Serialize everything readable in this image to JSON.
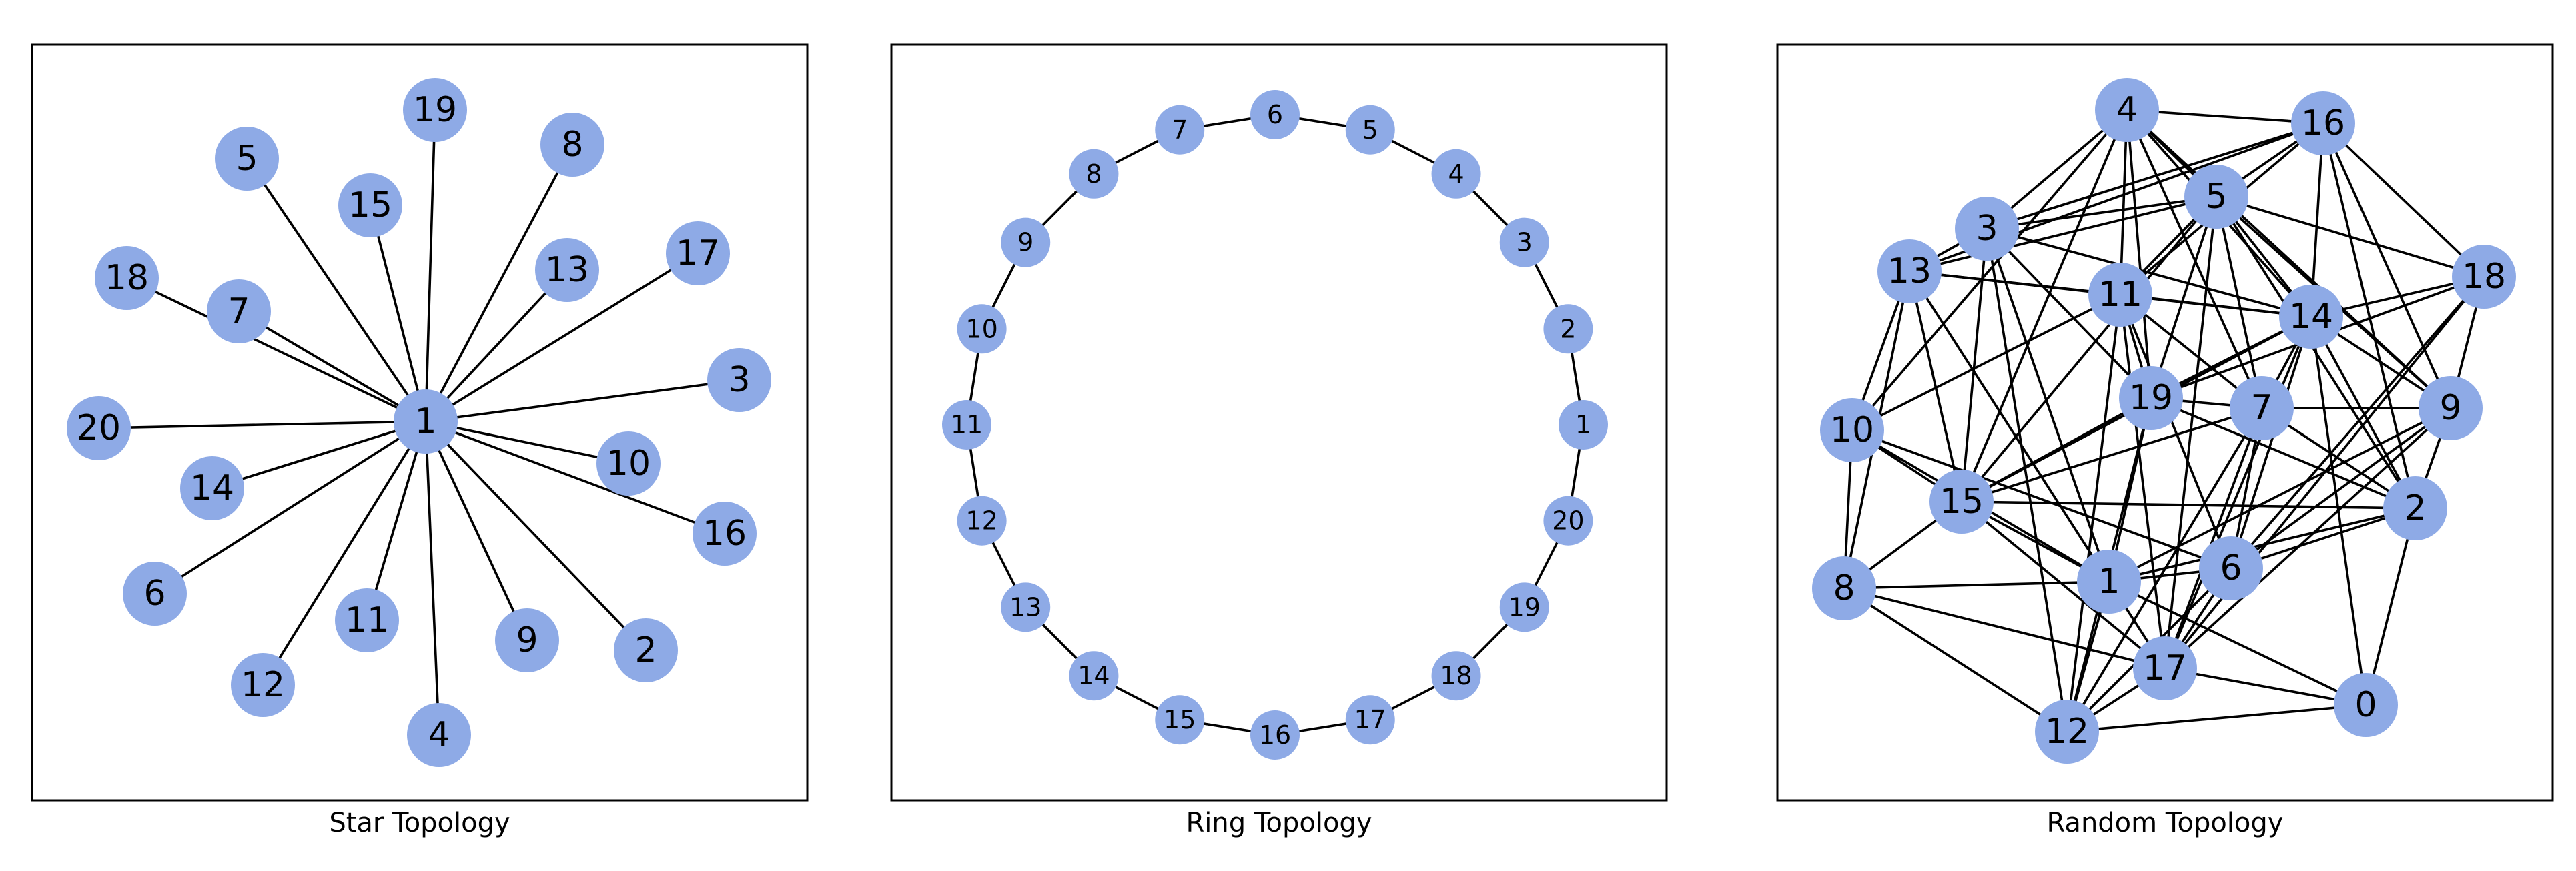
{
  "colors": {
    "node_fill": "#8eaae6",
    "edge": "#000000",
    "frame": "#000000",
    "background": "#ffffff"
  },
  "panels": [
    {
      "id": "star",
      "title": "Star Topology",
      "nodes": [
        {
          "id": "1"
        },
        {
          "id": "19"
        },
        {
          "id": "8"
        },
        {
          "id": "5"
        },
        {
          "id": "15"
        },
        {
          "id": "13"
        },
        {
          "id": "17"
        },
        {
          "id": "18"
        },
        {
          "id": "7"
        },
        {
          "id": "3"
        },
        {
          "id": "20"
        },
        {
          "id": "10"
        },
        {
          "id": "14"
        },
        {
          "id": "16"
        },
        {
          "id": "6"
        },
        {
          "id": "11"
        },
        {
          "id": "9"
        },
        {
          "id": "2"
        },
        {
          "id": "12"
        },
        {
          "id": "4"
        }
      ],
      "edges": [
        [
          "1",
          "19"
        ],
        [
          "1",
          "8"
        ],
        [
          "1",
          "5"
        ],
        [
          "1",
          "15"
        ],
        [
          "1",
          "13"
        ],
        [
          "1",
          "17"
        ],
        [
          "1",
          "18"
        ],
        [
          "1",
          "7"
        ],
        [
          "1",
          "3"
        ],
        [
          "1",
          "20"
        ],
        [
          "1",
          "10"
        ],
        [
          "1",
          "14"
        ],
        [
          "1",
          "16"
        ],
        [
          "1",
          "6"
        ],
        [
          "1",
          "11"
        ],
        [
          "1",
          "9"
        ],
        [
          "1",
          "2"
        ],
        [
          "1",
          "12"
        ],
        [
          "1",
          "4"
        ]
      ]
    },
    {
      "id": "ring",
      "title": "Ring Topology",
      "nodes": [
        {
          "id": "1"
        },
        {
          "id": "2"
        },
        {
          "id": "3"
        },
        {
          "id": "4"
        },
        {
          "id": "5"
        },
        {
          "id": "6"
        },
        {
          "id": "7"
        },
        {
          "id": "8"
        },
        {
          "id": "9"
        },
        {
          "id": "10"
        },
        {
          "id": "11"
        },
        {
          "id": "12"
        },
        {
          "id": "13"
        },
        {
          "id": "14"
        },
        {
          "id": "15"
        },
        {
          "id": "16"
        },
        {
          "id": "17"
        },
        {
          "id": "18"
        },
        {
          "id": "19"
        },
        {
          "id": "20"
        }
      ],
      "edges": [
        [
          "1",
          "2"
        ],
        [
          "2",
          "3"
        ],
        [
          "3",
          "4"
        ],
        [
          "4",
          "5"
        ],
        [
          "5",
          "6"
        ],
        [
          "6",
          "7"
        ],
        [
          "7",
          "8"
        ],
        [
          "8",
          "9"
        ],
        [
          "9",
          "10"
        ],
        [
          "10",
          "11"
        ],
        [
          "11",
          "12"
        ],
        [
          "12",
          "13"
        ],
        [
          "13",
          "14"
        ],
        [
          "14",
          "15"
        ],
        [
          "15",
          "16"
        ],
        [
          "16",
          "17"
        ],
        [
          "17",
          "18"
        ],
        [
          "18",
          "19"
        ],
        [
          "19",
          "20"
        ],
        [
          "20",
          "1"
        ]
      ]
    },
    {
      "id": "random",
      "title": "Random Topology",
      "nodes": [
        {
          "id": "4"
        },
        {
          "id": "16"
        },
        {
          "id": "5"
        },
        {
          "id": "3"
        },
        {
          "id": "18"
        },
        {
          "id": "13"
        },
        {
          "id": "11"
        },
        {
          "id": "14"
        },
        {
          "id": "19"
        },
        {
          "id": "7"
        },
        {
          "id": "9"
        },
        {
          "id": "10"
        },
        {
          "id": "15"
        },
        {
          "id": "2"
        },
        {
          "id": "6"
        },
        {
          "id": "1"
        },
        {
          "id": "8"
        },
        {
          "id": "17"
        },
        {
          "id": "0"
        },
        {
          "id": "12"
        }
      ],
      "edges": [
        [
          "4",
          "16"
        ],
        [
          "4",
          "5"
        ],
        [
          "4",
          "3"
        ],
        [
          "4",
          "11"
        ],
        [
          "4",
          "14"
        ],
        [
          "4",
          "19"
        ],
        [
          "4",
          "7"
        ],
        [
          "4",
          "15"
        ],
        [
          "4",
          "10"
        ],
        [
          "4",
          "9"
        ],
        [
          "16",
          "5"
        ],
        [
          "16",
          "3"
        ],
        [
          "16",
          "13"
        ],
        [
          "16",
          "18"
        ],
        [
          "16",
          "14"
        ],
        [
          "16",
          "9"
        ],
        [
          "16",
          "2"
        ],
        [
          "16",
          "11"
        ],
        [
          "5",
          "3"
        ],
        [
          "5",
          "13"
        ],
        [
          "5",
          "18"
        ],
        [
          "5",
          "11"
        ],
        [
          "5",
          "14"
        ],
        [
          "5",
          "19"
        ],
        [
          "5",
          "7"
        ],
        [
          "5",
          "9"
        ],
        [
          "5",
          "15"
        ],
        [
          "5",
          "2"
        ],
        [
          "5",
          "17"
        ],
        [
          "3",
          "13"
        ],
        [
          "3",
          "14"
        ],
        [
          "3",
          "15"
        ],
        [
          "3",
          "12"
        ],
        [
          "3",
          "1"
        ],
        [
          "3",
          "19"
        ],
        [
          "18",
          "14"
        ],
        [
          "18",
          "19"
        ],
        [
          "18",
          "9"
        ],
        [
          "18",
          "6"
        ],
        [
          "18",
          "17"
        ],
        [
          "13",
          "11"
        ],
        [
          "13",
          "14"
        ],
        [
          "13",
          "10"
        ],
        [
          "13",
          "8"
        ],
        [
          "13",
          "15"
        ],
        [
          "13",
          "1"
        ],
        [
          "11",
          "14"
        ],
        [
          "11",
          "19"
        ],
        [
          "11",
          "7"
        ],
        [
          "11",
          "10"
        ],
        [
          "11",
          "6"
        ],
        [
          "11",
          "17"
        ],
        [
          "11",
          "12"
        ],
        [
          "14",
          "19"
        ],
        [
          "14",
          "7"
        ],
        [
          "14",
          "9"
        ],
        [
          "14",
          "2"
        ],
        [
          "14",
          "15"
        ],
        [
          "14",
          "6"
        ],
        [
          "14",
          "17"
        ],
        [
          "14",
          "0"
        ],
        [
          "19",
          "7"
        ],
        [
          "19",
          "15"
        ],
        [
          "19",
          "2"
        ],
        [
          "19",
          "1"
        ],
        [
          "19",
          "12"
        ],
        [
          "7",
          "15"
        ],
        [
          "7",
          "9"
        ],
        [
          "7",
          "6"
        ],
        [
          "7",
          "17"
        ],
        [
          "7",
          "12"
        ],
        [
          "7",
          "2"
        ],
        [
          "9",
          "2"
        ],
        [
          "9",
          "6"
        ],
        [
          "9",
          "1"
        ],
        [
          "9",
          "17"
        ],
        [
          "10",
          "15"
        ],
        [
          "10",
          "8"
        ],
        [
          "10",
          "6"
        ],
        [
          "10",
          "1"
        ],
        [
          "15",
          "1"
        ],
        [
          "15",
          "17"
        ],
        [
          "15",
          "8"
        ],
        [
          "15",
          "2"
        ],
        [
          "2",
          "6"
        ],
        [
          "2",
          "1"
        ],
        [
          "2",
          "0"
        ],
        [
          "6",
          "1"
        ],
        [
          "6",
          "17"
        ],
        [
          "6",
          "12"
        ],
        [
          "1",
          "8"
        ],
        [
          "1",
          "17"
        ],
        [
          "1",
          "12"
        ],
        [
          "1",
          "0"
        ],
        [
          "8",
          "17"
        ],
        [
          "8",
          "12"
        ],
        [
          "17",
          "12"
        ],
        [
          "17",
          "0"
        ],
        [
          "12",
          "0"
        ]
      ]
    }
  ]
}
